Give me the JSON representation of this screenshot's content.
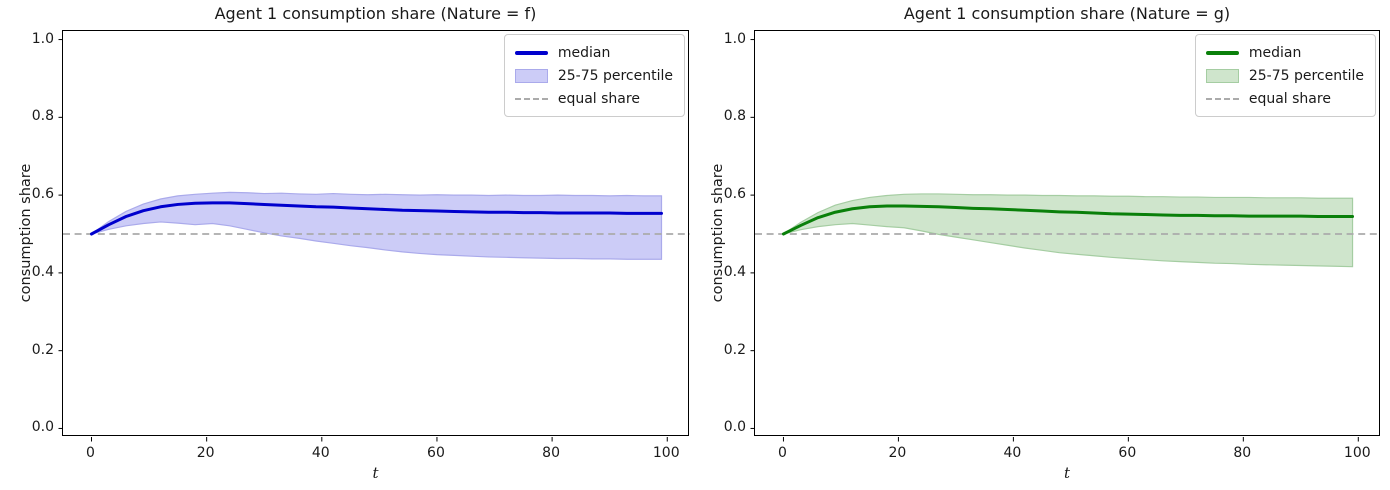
{
  "figure": {
    "background": "#ffffff",
    "text_color": "#1a1a1a",
    "spine_color": "#000000",
    "legend_border_color": "#cccccc"
  },
  "chart_data": [
    {
      "type": "line",
      "title": "Agent 1 consumption share (Nature = f)",
      "xlabel": "t",
      "ylabel": "consumption share",
      "xlim": [
        -4.95,
        103.95
      ],
      "ylim": [
        -0.022,
        1.022
      ],
      "xticks": [
        "0",
        "20",
        "40",
        "60",
        "80",
        "100"
      ],
      "xtick_values": [
        0,
        20,
        40,
        60,
        80,
        100
      ],
      "yticks": [
        "0.0",
        "0.2",
        "0.4",
        "0.6",
        "0.8",
        "1.0"
      ],
      "ytick_values": [
        0.0,
        0.2,
        0.4,
        0.6,
        0.8,
        1.0
      ],
      "grid": false,
      "legend_position": "upper right",
      "legend": [
        {
          "label": "median",
          "type": "line"
        },
        {
          "label": "25-75 percentile",
          "type": "patch"
        },
        {
          "label": "equal share",
          "type": "dashed"
        }
      ],
      "equal_share_value": 0.5,
      "colors": {
        "median": "#0000cd",
        "band_fill": "#ccccf7",
        "band_edge": "#aaaaeb",
        "equal_share": "#ababab"
      },
      "t": [
        0,
        3,
        6,
        9,
        12,
        15,
        18,
        21,
        24,
        27,
        30,
        33,
        36,
        39,
        42,
        45,
        48,
        51,
        54,
        57,
        60,
        63,
        66,
        69,
        72,
        75,
        78,
        81,
        84,
        87,
        90,
        93,
        96,
        99
      ],
      "series": [
        {
          "name": "median",
          "values": [
            0.5,
            0.524,
            0.545,
            0.56,
            0.57,
            0.576,
            0.579,
            0.58,
            0.58,
            0.578,
            0.576,
            0.574,
            0.572,
            0.57,
            0.569,
            0.567,
            0.565,
            0.563,
            0.561,
            0.56,
            0.559,
            0.558,
            0.557,
            0.556,
            0.556,
            0.555,
            0.555,
            0.554,
            0.554,
            0.554,
            0.554,
            0.553,
            0.553,
            0.553
          ]
        },
        {
          "name": "p75",
          "values": [
            0.5,
            0.532,
            0.558,
            0.577,
            0.59,
            0.598,
            0.602,
            0.605,
            0.607,
            0.606,
            0.604,
            0.605,
            0.603,
            0.602,
            0.604,
            0.602,
            0.601,
            0.602,
            0.601,
            0.6,
            0.601,
            0.6,
            0.6,
            0.599,
            0.6,
            0.599,
            0.599,
            0.6,
            0.599,
            0.599,
            0.598,
            0.599,
            0.598,
            0.598
          ]
        },
        {
          "name": "p25",
          "values": [
            0.5,
            0.512,
            0.521,
            0.527,
            0.531,
            0.528,
            0.524,
            0.527,
            0.521,
            0.512,
            0.503,
            0.495,
            0.489,
            0.482,
            0.476,
            0.47,
            0.465,
            0.459,
            0.454,
            0.45,
            0.447,
            0.445,
            0.443,
            0.441,
            0.44,
            0.439,
            0.438,
            0.437,
            0.437,
            0.436,
            0.436,
            0.435,
            0.435,
            0.435
          ]
        }
      ]
    },
    {
      "type": "line",
      "title": "Agent 1 consumption share (Nature = g)",
      "xlabel": "t",
      "ylabel": "consumption share",
      "xlim": [
        -4.95,
        103.95
      ],
      "ylim": [
        -0.022,
        1.022
      ],
      "xticks": [
        "0",
        "20",
        "40",
        "60",
        "80",
        "100"
      ],
      "xtick_values": [
        0,
        20,
        40,
        60,
        80,
        100
      ],
      "yticks": [
        "0.0",
        "0.2",
        "0.4",
        "0.6",
        "0.8",
        "1.0"
      ],
      "ytick_values": [
        0.0,
        0.2,
        0.4,
        0.6,
        0.8,
        1.0
      ],
      "grid": false,
      "legend_position": "upper right",
      "legend": [
        {
          "label": "median",
          "type": "line"
        },
        {
          "label": "25-75 percentile",
          "type": "patch"
        },
        {
          "label": "equal share",
          "type": "dashed"
        }
      ],
      "equal_share_value": 0.5,
      "colors": {
        "median": "#0a800a",
        "band_fill": "#cfe5cc",
        "band_edge": "#a5cda2",
        "equal_share": "#ababab"
      },
      "t": [
        0,
        3,
        6,
        9,
        12,
        15,
        18,
        21,
        24,
        27,
        30,
        33,
        36,
        39,
        42,
        45,
        48,
        51,
        54,
        57,
        60,
        63,
        66,
        69,
        72,
        75,
        78,
        81,
        84,
        87,
        90,
        93,
        96,
        99
      ],
      "series": [
        {
          "name": "median",
          "values": [
            0.5,
            0.522,
            0.542,
            0.556,
            0.565,
            0.57,
            0.572,
            0.572,
            0.571,
            0.57,
            0.568,
            0.566,
            0.565,
            0.563,
            0.561,
            0.559,
            0.557,
            0.556,
            0.554,
            0.552,
            0.551,
            0.55,
            0.549,
            0.548,
            0.548,
            0.547,
            0.547,
            0.546,
            0.546,
            0.546,
            0.546,
            0.545,
            0.545,
            0.545
          ]
        },
        {
          "name": "p75",
          "values": [
            0.5,
            0.53,
            0.555,
            0.574,
            0.586,
            0.594,
            0.599,
            0.602,
            0.603,
            0.603,
            0.602,
            0.601,
            0.601,
            0.6,
            0.6,
            0.599,
            0.599,
            0.598,
            0.598,
            0.597,
            0.597,
            0.596,
            0.596,
            0.595,
            0.595,
            0.594,
            0.594,
            0.594,
            0.593,
            0.593,
            0.593,
            0.592,
            0.592,
            0.592
          ]
        },
        {
          "name": "p25",
          "values": [
            0.5,
            0.511,
            0.519,
            0.524,
            0.527,
            0.523,
            0.519,
            0.516,
            0.508,
            0.499,
            0.492,
            0.485,
            0.478,
            0.471,
            0.464,
            0.458,
            0.452,
            0.448,
            0.444,
            0.44,
            0.437,
            0.434,
            0.431,
            0.429,
            0.427,
            0.425,
            0.424,
            0.422,
            0.421,
            0.42,
            0.419,
            0.418,
            0.417,
            0.416
          ]
        }
      ]
    }
  ]
}
